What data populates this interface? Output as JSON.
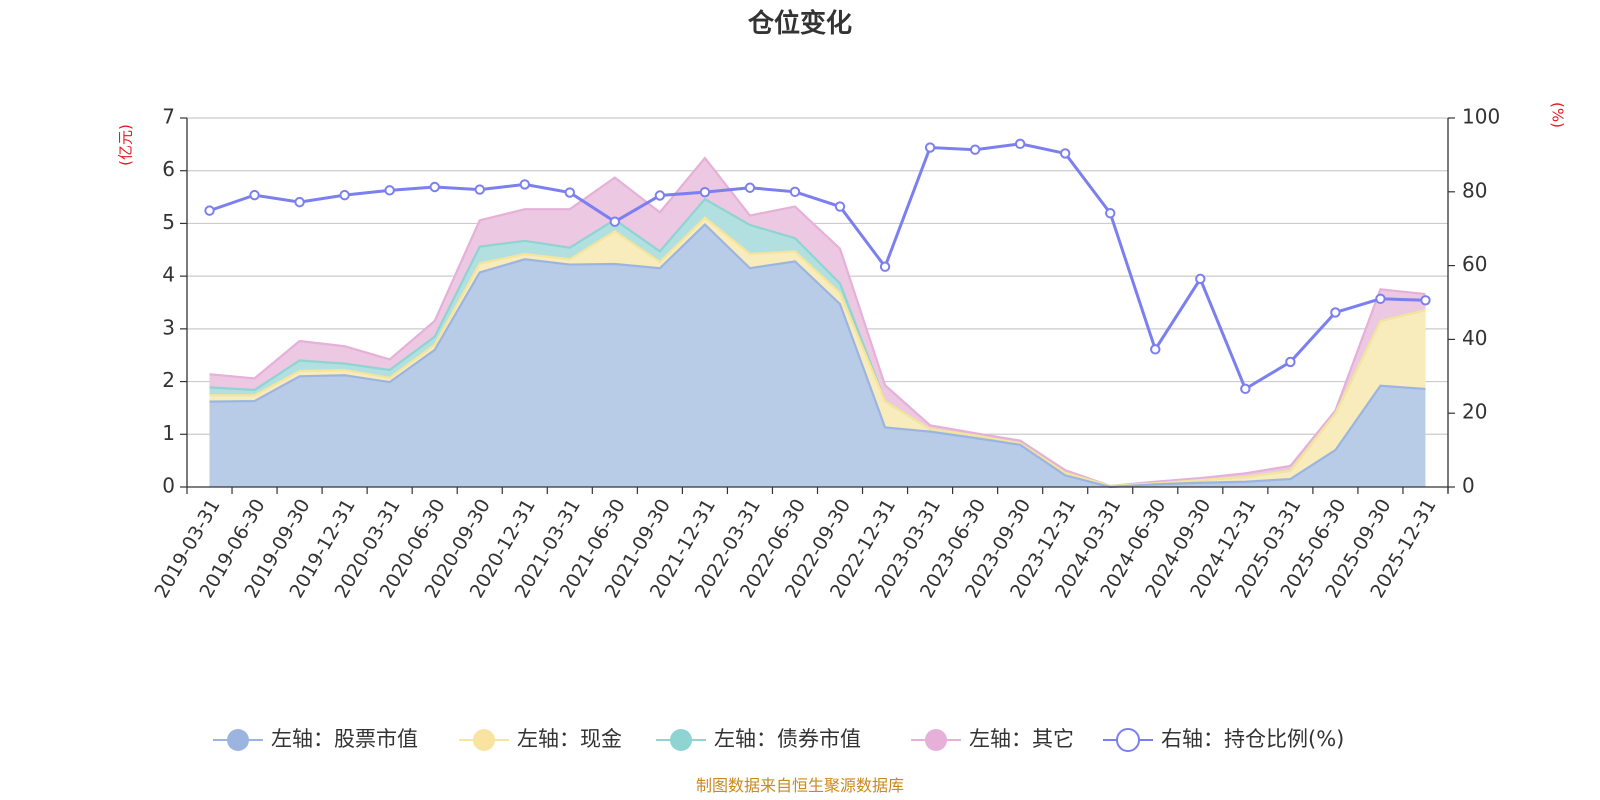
{
  "chart_data": {
    "type": "area",
    "title": "仓位变化",
    "left_unit": "(亿元)",
    "right_unit": "(%)",
    "left_ylim": [
      0,
      7
    ],
    "left_ticks": [
      "0",
      "1",
      "2",
      "3",
      "4",
      "5",
      "6",
      "7"
    ],
    "right_ylim": [
      0,
      100
    ],
    "right_ticks": [
      "0",
      "20",
      "40",
      "60",
      "80",
      "100"
    ],
    "categories": [
      "2019-03-31",
      "2019-06-30",
      "2019-09-30",
      "2019-12-31",
      "2020-03-31",
      "2020-06-30",
      "2020-09-30",
      "2020-12-31",
      "2021-03-31",
      "2021-06-30",
      "2021-09-30",
      "2021-12-31",
      "2022-03-31",
      "2022-06-30",
      "2022-09-30",
      "2022-12-31",
      "2023-03-31",
      "2023-06-30",
      "2023-09-30",
      "2023-12-31",
      "2024-03-31",
      "2024-06-30",
      "2024-09-30",
      "2024-12-31",
      "2025-03-31",
      "2025-06-30",
      "2025-09-30",
      "2025-12-31"
    ],
    "series": [
      {
        "name": "左轴：股票市值",
        "axis": "left",
        "color": "#b8cce8",
        "stroke": "#9bb5e0",
        "legend_color": "#9bb5e0",
        "values": [
          1.62,
          1.63,
          2.1,
          2.12,
          1.99,
          2.6,
          4.07,
          4.32,
          4.22,
          4.23,
          4.15,
          4.98,
          4.15,
          4.28,
          3.47,
          1.13,
          1.05,
          0.93,
          0.8,
          0.22,
          0.0,
          0.05,
          0.08,
          0.1,
          0.15,
          0.7,
          1.92,
          1.86
        ]
      },
      {
        "name": "左轴：现金",
        "axis": "left",
        "color": "#f8ebbc",
        "stroke": "#f5e49a",
        "legend_color": "#f8e4a0",
        "values": [
          0.12,
          0.11,
          0.1,
          0.1,
          0.08,
          0.1,
          0.17,
          0.1,
          0.1,
          0.62,
          0.12,
          0.13,
          0.27,
          0.19,
          0.21,
          0.5,
          0.05,
          0.05,
          0.03,
          0.05,
          0.02,
          0.02,
          0.05,
          0.09,
          0.16,
          0.7,
          1.23,
          1.5
        ]
      },
      {
        "name": "左轴：债券市值",
        "axis": "left",
        "color": "#b2e0e0",
        "stroke": "#8fd3d3",
        "legend_color": "#8fd3d3",
        "values": [
          0.15,
          0.1,
          0.2,
          0.12,
          0.15,
          0.15,
          0.32,
          0.25,
          0.22,
          0.22,
          0.2,
          0.35,
          0.55,
          0.25,
          0.18,
          0.0,
          0.0,
          0.0,
          0.0,
          0.0,
          0.0,
          0.0,
          0.0,
          0.0,
          0.0,
          0.0,
          0.0,
          0.0
        ]
      },
      {
        "name": "左轴：其它",
        "axis": "left",
        "color": "#ecc8e2",
        "stroke": "#e6b0d8",
        "legend_color": "#e6b0d8",
        "values": [
          0.25,
          0.22,
          0.37,
          0.33,
          0.2,
          0.3,
          0.5,
          0.6,
          0.73,
          0.8,
          0.74,
          0.78,
          0.18,
          0.6,
          0.66,
          0.3,
          0.07,
          0.04,
          0.05,
          0.05,
          0.0,
          0.03,
          0.04,
          0.07,
          0.09,
          0.05,
          0.6,
          0.3
        ]
      },
      {
        "name": "右轴：持仓比例(%)",
        "axis": "right",
        "color": "#7b7ff0",
        "legend_color": "#7b7ff0",
        "values": [
          74.9,
          79.1,
          77.2,
          79.1,
          80.4,
          81.3,
          80.6,
          82.0,
          79.8,
          71.9,
          79.0,
          79.9,
          81.1,
          80.0,
          76.0,
          59.7,
          92.0,
          91.4,
          93.0,
          90.4,
          74.2,
          37.3,
          56.4,
          26.6,
          33.9,
          47.3,
          51.0,
          50.6
        ]
      }
    ]
  },
  "source_text": "制图数据来自恒生聚源数据库"
}
